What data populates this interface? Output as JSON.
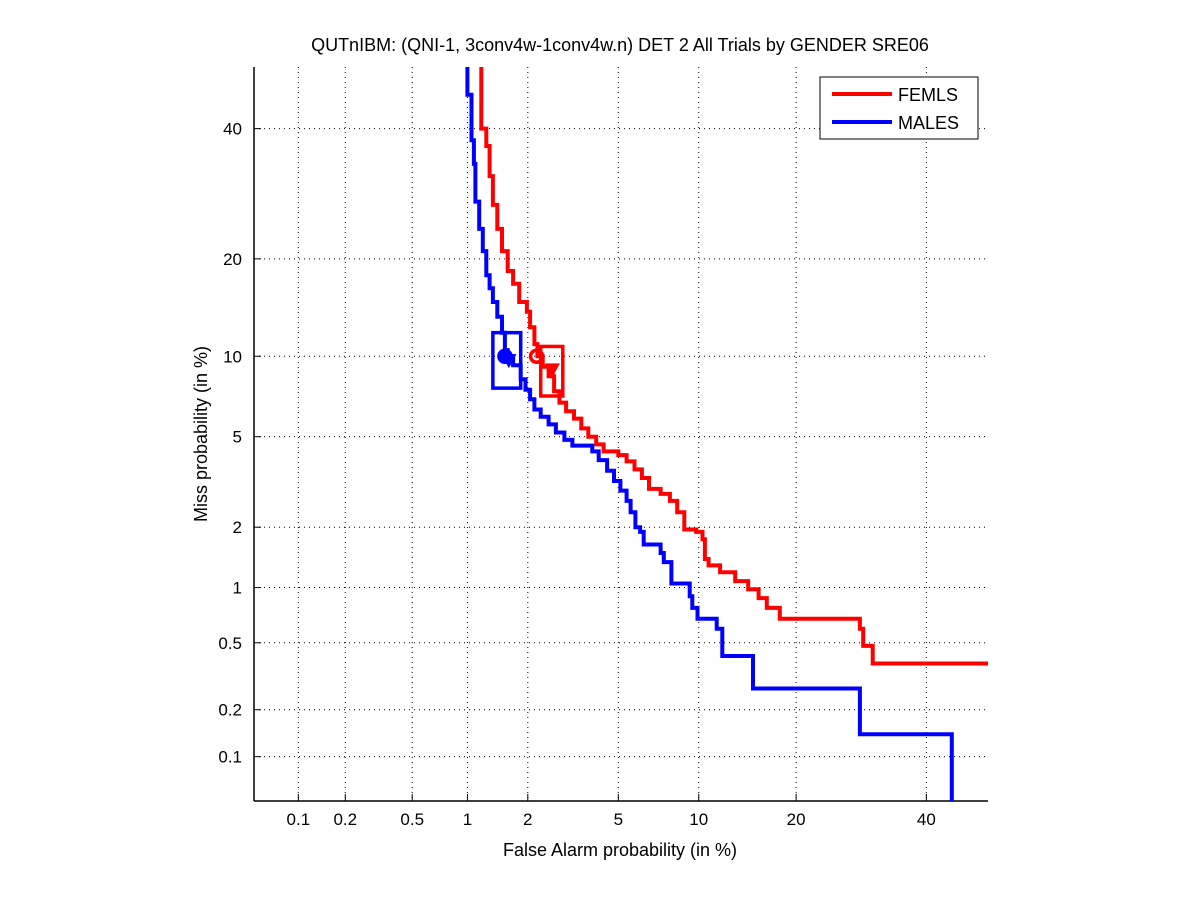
{
  "chart_data": {
    "type": "line",
    "title": "QUTnIBM: (QNI-1, 3conv4w-1conv4w.n) DET 2 All Trials by GENDER SRE06",
    "xlabel": "False Alarm probability (in %)",
    "ylabel": "Miss probability (in %)",
    "x_scale": "probit",
    "y_scale": "probit",
    "xlim": [
      0.05,
      51
    ],
    "ylim": [
      0.05,
      51
    ],
    "grid": true,
    "legend_position": "top-right",
    "x_ticks": [
      0.1,
      0.2,
      0.5,
      1,
      2,
      5,
      10,
      20,
      40
    ],
    "x_tick_labels": [
      "0.1",
      "0.2",
      "0.5",
      "1",
      "2",
      "5",
      "10",
      "20",
      "40"
    ],
    "y_ticks": [
      0.1,
      0.2,
      0.5,
      1,
      2,
      5,
      10,
      20,
      40
    ],
    "y_tick_labels": [
      "0.1",
      "0.2",
      "0.5",
      "1",
      "2",
      "5",
      "10",
      "20",
      "40"
    ],
    "series": [
      {
        "name": "FEMLS",
        "color": "#ff0000",
        "points": [
          [
            1.18,
            51
          ],
          [
            1.18,
            40
          ],
          [
            1.25,
            40
          ],
          [
            1.25,
            37
          ],
          [
            1.3,
            37
          ],
          [
            1.3,
            32
          ],
          [
            1.35,
            32
          ],
          [
            1.35,
            27.5
          ],
          [
            1.42,
            27.5
          ],
          [
            1.42,
            24
          ],
          [
            1.5,
            24
          ],
          [
            1.5,
            21
          ],
          [
            1.6,
            21
          ],
          [
            1.6,
            18.5
          ],
          [
            1.7,
            18.5
          ],
          [
            1.7,
            17
          ],
          [
            1.82,
            17
          ],
          [
            1.82,
            15
          ],
          [
            1.98,
            15
          ],
          [
            1.98,
            14
          ],
          [
            2.05,
            14
          ],
          [
            2.05,
            12.5
          ],
          [
            2.15,
            12.5
          ],
          [
            2.15,
            11
          ],
          [
            2.22,
            11
          ],
          [
            2.22,
            10
          ],
          [
            2.35,
            10
          ],
          [
            2.35,
            9.2
          ],
          [
            2.5,
            9.2
          ],
          [
            2.5,
            8.5
          ],
          [
            2.65,
            8.5
          ],
          [
            2.65,
            7.5
          ],
          [
            2.8,
            7.5
          ],
          [
            2.8,
            6.8
          ],
          [
            3.0,
            6.8
          ],
          [
            3.0,
            6.3
          ],
          [
            3.25,
            6.3
          ],
          [
            3.25,
            5.9
          ],
          [
            3.5,
            5.9
          ],
          [
            3.5,
            5.4
          ],
          [
            3.75,
            5.4
          ],
          [
            3.75,
            5.0
          ],
          [
            4.05,
            5.0
          ],
          [
            4.05,
            4.65
          ],
          [
            4.35,
            4.65
          ],
          [
            4.35,
            4.35
          ],
          [
            5.0,
            4.35
          ],
          [
            5.0,
            4.2
          ],
          [
            5.4,
            4.2
          ],
          [
            5.4,
            3.95
          ],
          [
            5.8,
            3.95
          ],
          [
            5.8,
            3.65
          ],
          [
            6.2,
            3.65
          ],
          [
            6.2,
            3.35
          ],
          [
            6.6,
            3.35
          ],
          [
            6.6,
            3.0
          ],
          [
            7.3,
            3.0
          ],
          [
            7.3,
            2.85
          ],
          [
            7.9,
            2.85
          ],
          [
            7.9,
            2.65
          ],
          [
            8.4,
            2.65
          ],
          [
            8.4,
            2.35
          ],
          [
            8.9,
            2.35
          ],
          [
            8.9,
            1.95
          ],
          [
            9.8,
            1.95
          ],
          [
            9.8,
            1.9
          ],
          [
            10.3,
            1.9
          ],
          [
            10.3,
            1.75
          ],
          [
            10.5,
            1.75
          ],
          [
            10.5,
            1.4
          ],
          [
            10.8,
            1.4
          ],
          [
            10.8,
            1.3
          ],
          [
            11.8,
            1.3
          ],
          [
            11.8,
            1.2
          ],
          [
            13.2,
            1.2
          ],
          [
            13.2,
            1.08
          ],
          [
            14.5,
            1.08
          ],
          [
            14.5,
            0.98
          ],
          [
            15.6,
            0.98
          ],
          [
            15.6,
            0.88
          ],
          [
            16.5,
            0.88
          ],
          [
            16.5,
            0.78
          ],
          [
            18.0,
            0.78
          ],
          [
            18.0,
            0.68
          ],
          [
            29.0,
            0.68
          ],
          [
            29.0,
            0.6
          ],
          [
            29.5,
            0.6
          ],
          [
            29.5,
            0.48
          ],
          [
            31.0,
            0.48
          ],
          [
            31.0,
            0.38
          ],
          [
            51,
            0.38
          ]
        ],
        "operating_point": {
          "fa": 2.2,
          "miss": 10.0,
          "marker": "circle"
        },
        "actual_point": {
          "fa": 2.6,
          "miss": 9.0,
          "marker": "triangle"
        },
        "confidence_box": {
          "fa_min": 2.3,
          "fa_max": 2.9,
          "miss_min": 7.2,
          "miss_max": 10.8
        }
      },
      {
        "name": "MALES",
        "color": "#0000ff",
        "points": [
          [
            1.0,
            51
          ],
          [
            1.0,
            46
          ],
          [
            1.05,
            46
          ],
          [
            1.05,
            38
          ],
          [
            1.08,
            38
          ],
          [
            1.08,
            34
          ],
          [
            1.1,
            34
          ],
          [
            1.1,
            28
          ],
          [
            1.15,
            28
          ],
          [
            1.15,
            24
          ],
          [
            1.2,
            24
          ],
          [
            1.2,
            21
          ],
          [
            1.25,
            21
          ],
          [
            1.25,
            18
          ],
          [
            1.3,
            18
          ],
          [
            1.3,
            16.5
          ],
          [
            1.35,
            16.5
          ],
          [
            1.35,
            15
          ],
          [
            1.42,
            15
          ],
          [
            1.42,
            13.5
          ],
          [
            1.5,
            13.5
          ],
          [
            1.5,
            12
          ],
          [
            1.55,
            12
          ],
          [
            1.55,
            10.5
          ],
          [
            1.6,
            10.5
          ],
          [
            1.6,
            10
          ],
          [
            1.7,
            10
          ],
          [
            1.7,
            9.3
          ],
          [
            1.85,
            9.3
          ],
          [
            1.85,
            8.3
          ],
          [
            1.95,
            8.3
          ],
          [
            1.95,
            7.6
          ],
          [
            2.05,
            7.6
          ],
          [
            2.05,
            7.0
          ],
          [
            2.15,
            7.0
          ],
          [
            2.15,
            6.4
          ],
          [
            2.3,
            6.4
          ],
          [
            2.3,
            6.0
          ],
          [
            2.5,
            6.0
          ],
          [
            2.5,
            5.6
          ],
          [
            2.7,
            5.6
          ],
          [
            2.7,
            5.2
          ],
          [
            2.95,
            5.2
          ],
          [
            2.95,
            4.85
          ],
          [
            3.2,
            4.85
          ],
          [
            3.2,
            4.6
          ],
          [
            3.9,
            4.6
          ],
          [
            3.9,
            4.35
          ],
          [
            4.15,
            4.35
          ],
          [
            4.15,
            4.0
          ],
          [
            4.5,
            4.0
          ],
          [
            4.5,
            3.6
          ],
          [
            4.8,
            3.6
          ],
          [
            4.8,
            3.25
          ],
          [
            5.1,
            3.25
          ],
          [
            5.1,
            2.95
          ],
          [
            5.4,
            2.95
          ],
          [
            5.4,
            2.65
          ],
          [
            5.6,
            2.65
          ],
          [
            5.6,
            2.35
          ],
          [
            5.85,
            2.35
          ],
          [
            5.85,
            2.0
          ],
          [
            6.1,
            2.0
          ],
          [
            6.1,
            1.9
          ],
          [
            6.3,
            1.9
          ],
          [
            6.3,
            1.65
          ],
          [
            7.3,
            1.65
          ],
          [
            7.3,
            1.5
          ],
          [
            7.5,
            1.5
          ],
          [
            7.5,
            1.35
          ],
          [
            8.0,
            1.35
          ],
          [
            8.0,
            1.05
          ],
          [
            9.3,
            1.05
          ],
          [
            9.3,
            0.9
          ],
          [
            9.5,
            0.9
          ],
          [
            9.5,
            0.78
          ],
          [
            9.9,
            0.78
          ],
          [
            9.9,
            0.68
          ],
          [
            11.5,
            0.68
          ],
          [
            11.5,
            0.6
          ],
          [
            12.0,
            0.6
          ],
          [
            12.0,
            0.42
          ],
          [
            15.0,
            0.42
          ],
          [
            15.0,
            0.27
          ],
          [
            29.0,
            0.27
          ],
          [
            29.0,
            0.14
          ],
          [
            44.5,
            0.14
          ],
          [
            44.5,
            0.05
          ]
        ],
        "operating_point": {
          "fa": 1.55,
          "miss": 10.0,
          "marker": "circle"
        },
        "actual_point": {
          "fa": 1.62,
          "miss": 9.7,
          "marker": "triangle"
        },
        "confidence_box": {
          "fa_min": 1.35,
          "fa_max": 1.85,
          "miss_min": 7.7,
          "miss_max": 12.0
        }
      }
    ]
  }
}
